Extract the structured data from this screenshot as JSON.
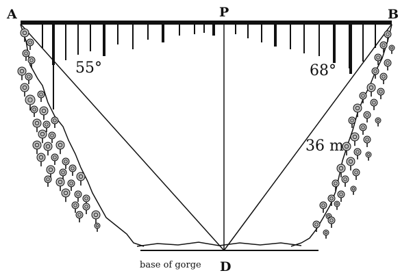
{
  "points": {
    "a": "A",
    "p": "P",
    "b": "B",
    "d": "D"
  },
  "angles": {
    "at_a": "55°",
    "at_b": "68°"
  },
  "length_label": "36 m",
  "caption": "base of gorge",
  "colors": {
    "ink": "#111111",
    "foliage": "#bdbdbd",
    "background": "#ffffff"
  }
}
